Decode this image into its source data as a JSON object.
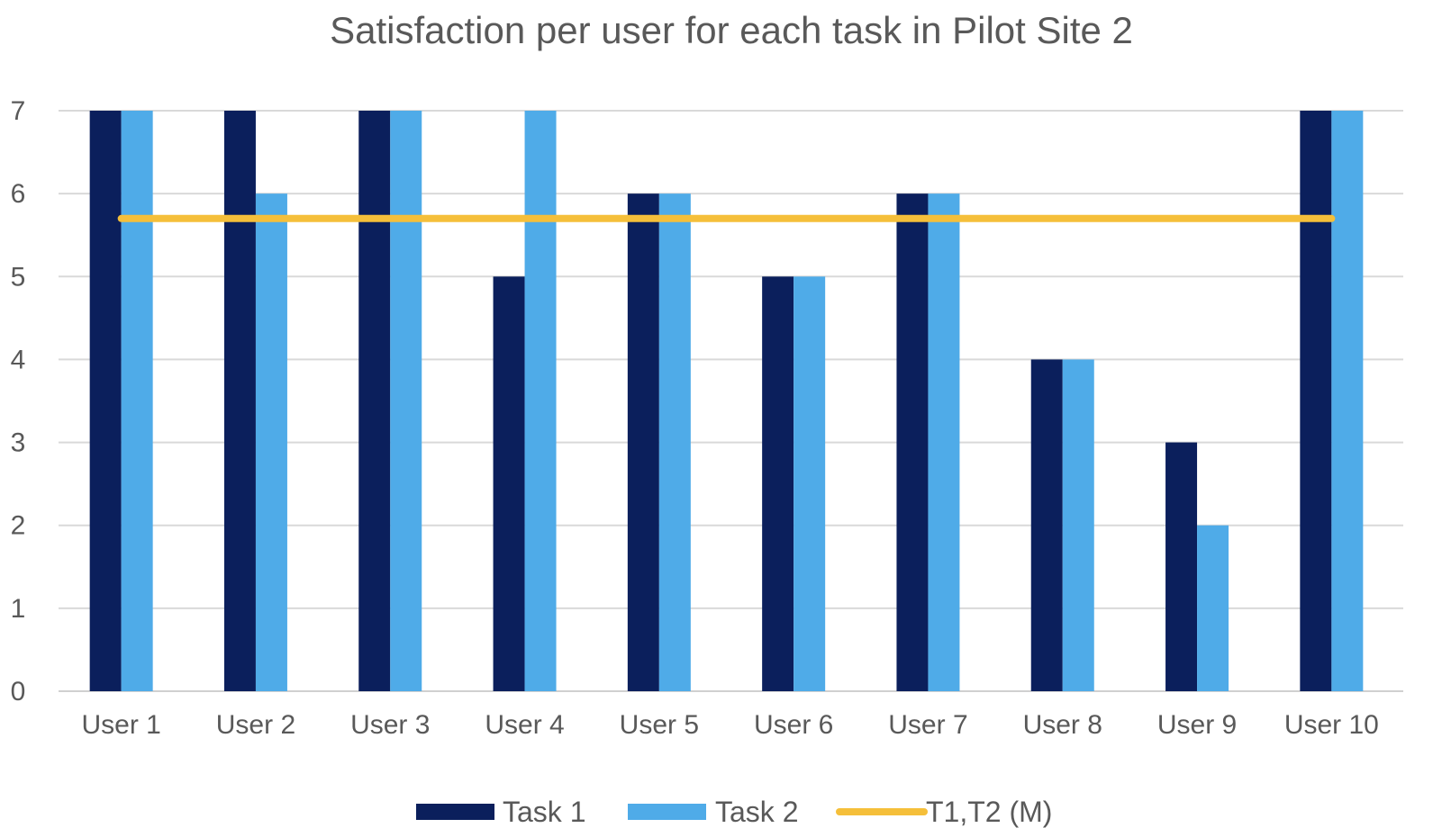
{
  "chart_data": {
    "type": "bar",
    "title": "Satisfaction per user for each task in Pilot Site 2",
    "xlabel": "",
    "ylabel": "",
    "categories": [
      "User 1",
      "User 2",
      "User 3",
      "User 4",
      "User 5",
      "User 6",
      "User 7",
      "User 8",
      "User 9",
      "User 10"
    ],
    "series": [
      {
        "name": "Task 1",
        "values": [
          7,
          7,
          7,
          5,
          6,
          5,
          6,
          4,
          3,
          7
        ],
        "color": "#0b1f5c"
      },
      {
        "name": "Task 2",
        "values": [
          7,
          6,
          7,
          7,
          6,
          5,
          6,
          4,
          2,
          7
        ],
        "color": "#4fabe8"
      }
    ],
    "reference_line": {
      "name": "T1,T2 (M)",
      "value": 5.7,
      "color": "#f5bf3a"
    },
    "ylim": [
      0,
      7
    ],
    "yticks": [
      0,
      1,
      2,
      3,
      4,
      5,
      6,
      7
    ],
    "grid": true,
    "legend_position": "bottom"
  }
}
